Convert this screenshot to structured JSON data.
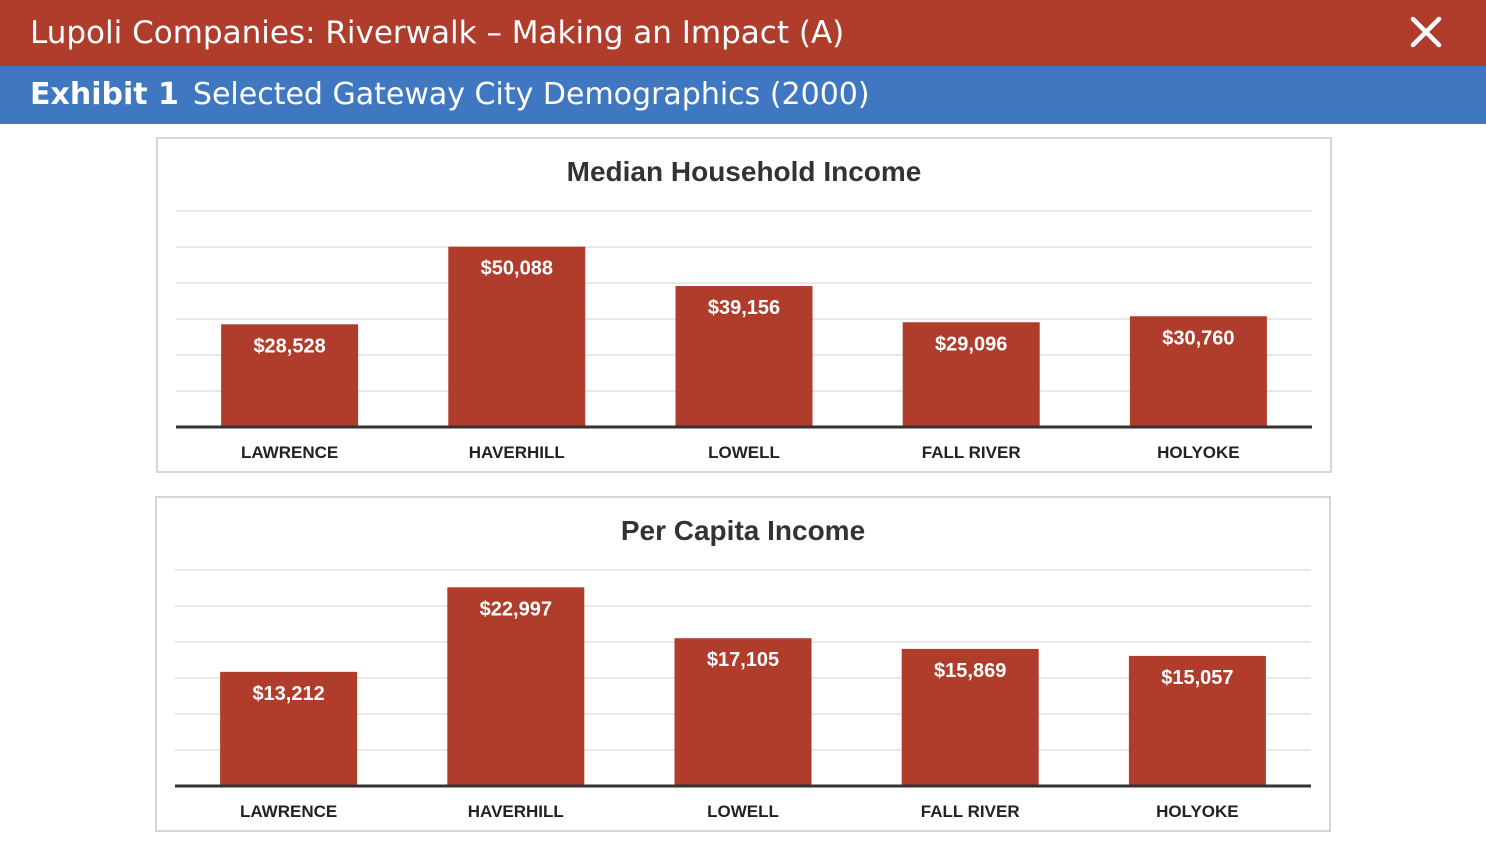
{
  "window": {
    "title": "Lupoli Companies: Riverwalk – Making an Impact (A)",
    "close_icon": "close-icon"
  },
  "exhibit": {
    "number": "Exhibit 1",
    "caption": "Selected Gateway City Demographics (2000)"
  },
  "colors": {
    "title_bar": "#b03c2c",
    "exhibit_bar": "#3f78c1",
    "bar_fill": "#b03c2c"
  },
  "chart_data": [
    {
      "type": "bar",
      "title": "Median Household Income",
      "categories": [
        "LAWRENCE",
        "HAVERHILL",
        "LOWELL",
        "FALL RIVER",
        "HOLYOKE"
      ],
      "values": [
        28528,
        50088,
        39156,
        29096,
        30760
      ],
      "value_labels": [
        "$28,528",
        "$50,088",
        "$39,156",
        "$29,096",
        "$30,760"
      ],
      "xlabel": "",
      "ylabel": "",
      "ylim": [
        0,
        60000
      ],
      "grid": true,
      "legend": "none"
    },
    {
      "type": "bar",
      "title": "Per Capita Income",
      "categories": [
        "LAWRENCE",
        "HAVERHILL",
        "LOWELL",
        "FALL RIVER",
        "HOLYOKE"
      ],
      "values": [
        13212,
        22997,
        17105,
        15869,
        15057
      ],
      "value_labels": [
        "$13,212",
        "$22,997",
        "$17,105",
        "$15,869",
        "$15,057"
      ],
      "xlabel": "",
      "ylabel": "",
      "ylim": [
        0,
        25000
      ],
      "grid": true,
      "legend": "none"
    }
  ]
}
